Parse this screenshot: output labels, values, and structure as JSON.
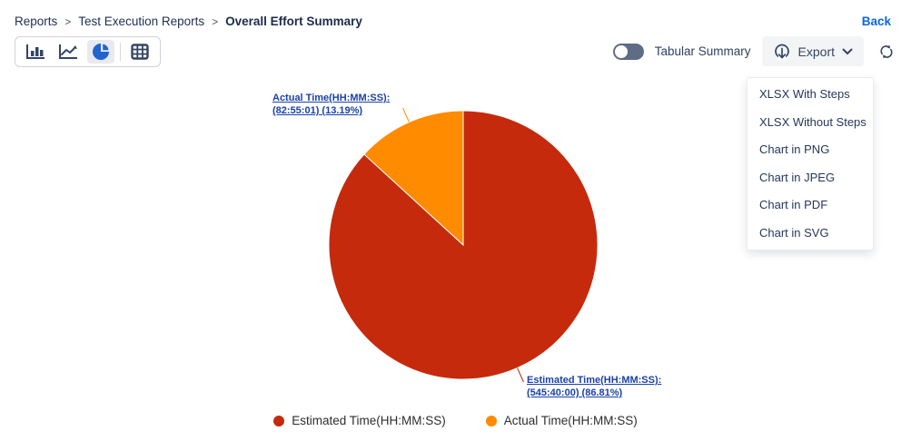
{
  "breadcrumb": {
    "items": [
      "Reports",
      "Test Execution Reports",
      "Overall Effort Summary"
    ],
    "separator": ">"
  },
  "back_label": "Back",
  "toolbar": {
    "chart_type_icons": [
      "bar-chart",
      "line-chart",
      "pie-chart",
      "table"
    ],
    "selected_chart_type": "pie-chart",
    "tabular_summary_label": "Tabular Summary",
    "tabular_summary_toggle_state": "off",
    "export_label": "Export"
  },
  "icons": {
    "export": "cloud-download-icon",
    "export_caret": "chevron-down-icon",
    "refresh": "refresh-icon"
  },
  "export_menu": {
    "items": [
      "XLSX With Steps",
      "XLSX Without Steps",
      "Chart in PNG",
      "Chart in JPEG",
      "Chart in PDF",
      "Chart in SVG"
    ]
  },
  "chart_data": {
    "type": "pie",
    "start_angle": 0,
    "legend_position": "bottom",
    "slices": [
      {
        "name": "Estimated Time(HH:MM:SS)",
        "value_hhmmss": "545:40:00",
        "percent": 86.81,
        "color": "#C52A0C",
        "label_line1": "Estimated Time(HH:MM:SS):",
        "label_line2": "(545:40:00) (86.81%)"
      },
      {
        "name": "Actual Time(HH:MM:SS)",
        "value_hhmmss": "82:55:01",
        "percent": 13.19,
        "color": "#FF8B00",
        "label_line1": "Actual Time(HH:MM:SS):",
        "label_line2": "(82:55:01) (13.19%)"
      }
    ]
  },
  "colors": {
    "estimated_slice": "#C52A0C",
    "actual_slice": "#FF8B00",
    "link_blue": "#0c66e4",
    "data_label_blue": "#1b41a8",
    "icon_navy": "#344563",
    "selected_icon_blue": "#2065cf"
  }
}
